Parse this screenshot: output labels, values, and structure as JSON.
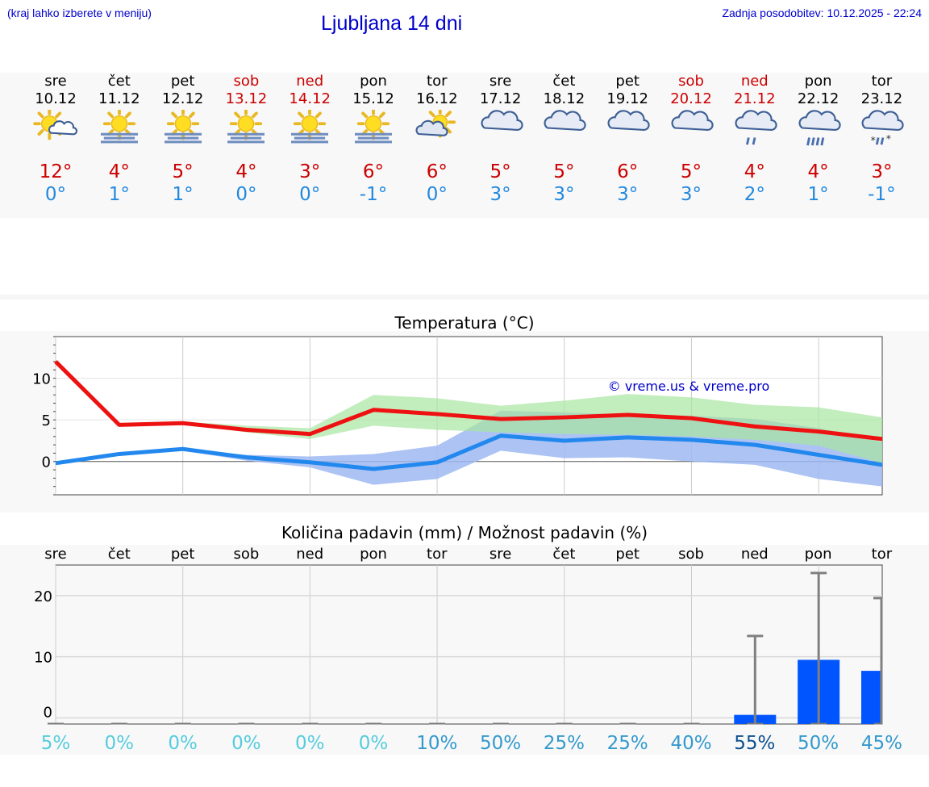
{
  "header": {
    "city_hint": "(kraj lahko izberete v meniju)",
    "title": "Ljubljana 14 dni",
    "updated": "Zadnja posodobitev: 10.12.2025 - 22:24"
  },
  "days": [
    {
      "name": "sre",
      "date": "10.12",
      "weekend": false,
      "icon": "sun-cloud-icon",
      "tmax": "12°",
      "tmin": "0°"
    },
    {
      "name": "čet",
      "date": "11.12",
      "weekend": false,
      "icon": "sun-fog-icon",
      "tmax": "4°",
      "tmin": "1°"
    },
    {
      "name": "pet",
      "date": "12.12",
      "weekend": false,
      "icon": "sun-fog-icon",
      "tmax": "5°",
      "tmin": "1°"
    },
    {
      "name": "sob",
      "date": "13.12",
      "weekend": true,
      "icon": "sun-fog-icon",
      "tmax": "4°",
      "tmin": "0°"
    },
    {
      "name": "ned",
      "date": "14.12",
      "weekend": true,
      "icon": "sun-fog-icon",
      "tmax": "3°",
      "tmin": "0°"
    },
    {
      "name": "pon",
      "date": "15.12",
      "weekend": false,
      "icon": "sun-fog-icon",
      "tmax": "6°",
      "tmin": "-1°"
    },
    {
      "name": "tor",
      "date": "16.12",
      "weekend": false,
      "icon": "partly-cloudy-icon",
      "tmax": "6°",
      "tmin": "0°"
    },
    {
      "name": "sre",
      "date": "17.12",
      "weekend": false,
      "icon": "cloud-icon",
      "tmax": "5°",
      "tmin": "3°"
    },
    {
      "name": "čet",
      "date": "18.12",
      "weekend": false,
      "icon": "cloud-icon",
      "tmax": "5°",
      "tmin": "3°"
    },
    {
      "name": "pet",
      "date": "19.12",
      "weekend": false,
      "icon": "cloud-icon",
      "tmax": "6°",
      "tmin": "3°"
    },
    {
      "name": "sob",
      "date": "20.12",
      "weekend": true,
      "icon": "cloud-icon",
      "tmax": "5°",
      "tmin": "3°"
    },
    {
      "name": "ned",
      "date": "21.12",
      "weekend": true,
      "icon": "cloud-rain-icon",
      "tmax": "4°",
      "tmin": "2°"
    },
    {
      "name": "pon",
      "date": "22.12",
      "weekend": false,
      "icon": "cloud-heavy-rain-icon",
      "tmax": "4°",
      "tmin": "1°"
    },
    {
      "name": "tor",
      "date": "23.12",
      "weekend": false,
      "icon": "cloud-sleet-icon",
      "tmax": "3°",
      "tmin": "-1°"
    }
  ],
  "colors": {
    "max_line": "#ee1111",
    "min_line": "#2288ee",
    "max_band": "#a8e6a0",
    "min_band": "#9db8f2",
    "bar": "#0055ff",
    "error": "#808080",
    "weekend_text": "#cc0000",
    "link": "#0000cc"
  },
  "chart_data": [
    {
      "type": "line",
      "title": "Temperatura (°C)",
      "watermark": "© vreme.us & vreme.pro",
      "x_days": 14,
      "ylim": [
        -4,
        15
      ],
      "yticks": [
        0,
        5,
        10
      ],
      "grid": true,
      "series": [
        {
          "key": "max",
          "values": [
            12.0,
            4.4,
            4.6,
            3.8,
            3.3,
            6.2,
            5.7,
            5.1,
            5.3,
            5.6,
            5.2,
            4.2,
            3.6,
            2.7
          ]
        },
        {
          "key": "min",
          "values": [
            -0.2,
            0.9,
            1.5,
            0.5,
            -0.1,
            -0.9,
            -0.1,
            3.1,
            2.5,
            2.9,
            2.6,
            2.0,
            0.8,
            -0.4
          ]
        }
      ],
      "bands": [
        {
          "key": "max_range",
          "upper": [
            12.0,
            4.4,
            4.8,
            4.3,
            4.0,
            8.0,
            7.6,
            6.7,
            7.3,
            8.1,
            7.7,
            6.8,
            6.5,
            5.3
          ],
          "lower": [
            12.0,
            4.4,
            4.6,
            3.5,
            2.7,
            4.3,
            3.8,
            3.5,
            3.3,
            3.2,
            3.0,
            2.6,
            1.9,
            -0.2
          ]
        },
        {
          "key": "min_range",
          "upper": [
            -0.2,
            0.9,
            1.5,
            0.8,
            0.6,
            0.9,
            1.9,
            6.1,
            5.9,
            5.6,
            5.5,
            5.1,
            4.0,
            2.3
          ]
        },
        {
          "key": "min_range_lower",
          "lower": [
            -0.2,
            0.9,
            1.3,
            0.1,
            -0.7,
            -2.8,
            -2.1,
            1.3,
            0.4,
            0.5,
            0.0,
            -0.4,
            -2.1,
            -3.0
          ]
        }
      ]
    },
    {
      "type": "bar",
      "title": "Količina padavin (mm) / Možnost padavin (%)",
      "categories": [
        "sre",
        "čet",
        "pet",
        "sob",
        "ned",
        "pon",
        "tor",
        "sre",
        "čet",
        "pet",
        "sob",
        "ned",
        "pon",
        "tor"
      ],
      "ylim": [
        -1,
        25
      ],
      "yticks": [
        0,
        10,
        20
      ],
      "grid": true,
      "values": [
        0,
        0,
        0,
        0,
        0,
        0,
        0,
        0,
        0,
        0,
        0,
        0.5,
        9.5,
        7.7
      ],
      "error_upper": [
        0,
        0,
        0,
        0,
        0,
        0,
        0,
        0,
        0,
        0,
        0,
        13.4,
        23.7,
        19.6
      ],
      "probability": [
        "5%",
        "0%",
        "0%",
        "0%",
        "0%",
        "0%",
        "10%",
        "50%",
        "25%",
        "25%",
        "40%",
        "55%",
        "50%",
        "45%"
      ],
      "probability_colors": [
        "#55ccdd",
        "#55ccdd",
        "#55ccdd",
        "#55ccdd",
        "#55ccdd",
        "#55ccdd",
        "#3399cc",
        "#3399cc",
        "#3399cc",
        "#3399cc",
        "#3399cc",
        "#0b4f8f",
        "#3399cc",
        "#3399cc"
      ]
    }
  ]
}
